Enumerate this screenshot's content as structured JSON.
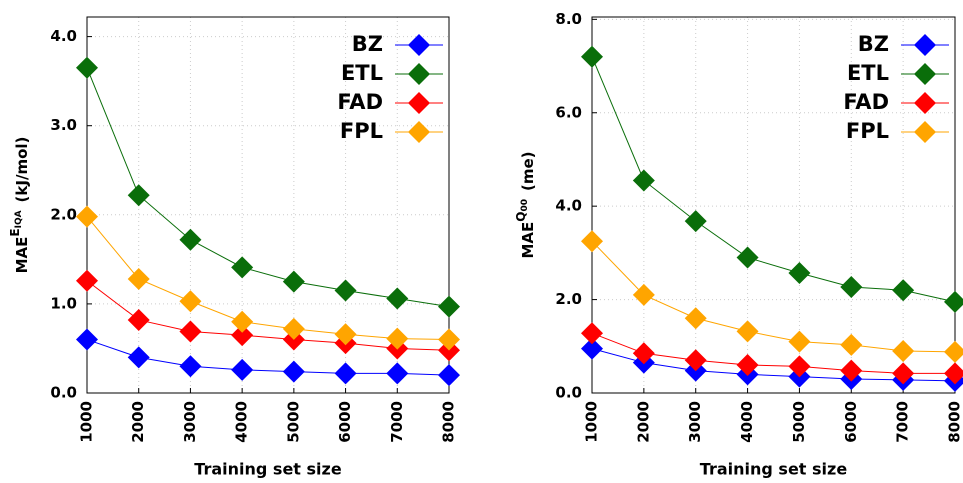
{
  "chart_data": [
    {
      "type": "line",
      "xlabel": "Training set size",
      "ylabel": {
        "base": "MAE",
        "sup": "E",
        "sub": "IQA",
        "unit": "(kJ/mol)"
      },
      "x": [
        1000,
        2000,
        3000,
        4000,
        5000,
        6000,
        7000,
        8000
      ],
      "xlim": [
        1000,
        8000
      ],
      "xticks": [
        1000,
        2000,
        3000,
        4000,
        5000,
        6000,
        7000,
        8000
      ],
      "ylim": [
        0,
        4.22
      ],
      "yticks": [
        {
          "value": 0,
          "label": "0.0"
        },
        {
          "value": 1,
          "label": "1.0"
        },
        {
          "value": 2,
          "label": "2.0"
        },
        {
          "value": 3,
          "label": "3.0"
        },
        {
          "value": 4,
          "label": "4.0"
        }
      ],
      "grid": true,
      "legend": "upper right",
      "series": [
        {
          "name": "BZ",
          "color": "#0000ff",
          "values": [
            0.6,
            0.4,
            0.3,
            0.26,
            0.24,
            0.22,
            0.22,
            0.2
          ]
        },
        {
          "name": "ETL",
          "color": "#0a6e0a",
          "values": [
            3.65,
            2.22,
            1.72,
            1.41,
            1.25,
            1.15,
            1.06,
            0.97
          ]
        },
        {
          "name": "FAD",
          "color": "#ff0000",
          "values": [
            1.26,
            0.82,
            0.69,
            0.65,
            0.6,
            0.56,
            0.5,
            0.48
          ]
        },
        {
          "name": "FPL",
          "color": "#ffa500",
          "values": [
            1.98,
            1.28,
            1.03,
            0.8,
            0.72,
            0.66,
            0.61,
            0.6
          ]
        }
      ]
    },
    {
      "type": "line",
      "xlabel": "Training set size",
      "ylabel": {
        "base": "MAE",
        "sup": "Q",
        "sub": "00",
        "unit": "(me)"
      },
      "x": [
        1000,
        2000,
        3000,
        4000,
        5000,
        6000,
        7000,
        8000
      ],
      "xlim": [
        1000,
        8000
      ],
      "xticks": [
        1000,
        2000,
        3000,
        4000,
        5000,
        6000,
        7000,
        8000
      ],
      "ylim": [
        0,
        8.05
      ],
      "yticks": [
        {
          "value": 0,
          "label": "0.0"
        },
        {
          "value": 2,
          "label": "2.0"
        },
        {
          "value": 4,
          "label": "4.0"
        },
        {
          "value": 6,
          "label": "6.0"
        },
        {
          "value": 8,
          "label": "8.0"
        }
      ],
      "grid": true,
      "legend": "upper right",
      "series": [
        {
          "name": "BZ",
          "color": "#0000ff",
          "values": [
            0.95,
            0.65,
            0.48,
            0.4,
            0.35,
            0.3,
            0.28,
            0.26
          ]
        },
        {
          "name": "ETL",
          "color": "#0a6e0a",
          "values": [
            7.2,
            4.55,
            3.68,
            2.9,
            2.57,
            2.27,
            2.2,
            1.95
          ]
        },
        {
          "name": "FAD",
          "color": "#ff0000",
          "values": [
            1.28,
            0.85,
            0.7,
            0.6,
            0.57,
            0.48,
            0.42,
            0.42
          ]
        },
        {
          "name": "FPL",
          "color": "#ffa500",
          "values": [
            3.25,
            2.1,
            1.6,
            1.32,
            1.1,
            1.03,
            0.9,
            0.88
          ]
        }
      ]
    }
  ]
}
